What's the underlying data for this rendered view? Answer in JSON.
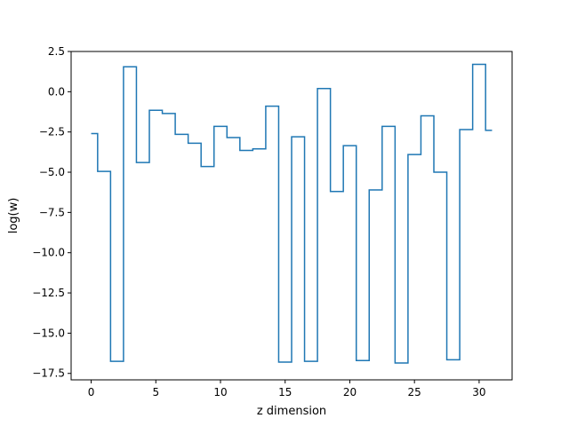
{
  "chart_data": {
    "type": "line",
    "drawstyle": "steps-mid",
    "title": "",
    "xlabel": "z dimension",
    "ylabel": "log(w)",
    "xlim": [
      -1.55,
      32.55
    ],
    "ylim": [
      -17.9,
      2.5
    ],
    "xticks": [
      0,
      5,
      10,
      15,
      20,
      25,
      30
    ],
    "yticks": [
      2.5,
      0.0,
      -2.5,
      -5.0,
      -7.5,
      -10.0,
      -12.5,
      -15.0,
      -17.5
    ],
    "ytick_labels": [
      "2.5",
      "0.0",
      "−2.5",
      "−5.0",
      "−7.5",
      "−10.0",
      "−12.5",
      "−15.0",
      "−17.5"
    ],
    "grid": false,
    "line_color": "#1f77b4",
    "series": [
      {
        "x": [
          0,
          1,
          2,
          3,
          4,
          5,
          6,
          7,
          8,
          9,
          10,
          11,
          12,
          13,
          14,
          15,
          16,
          17,
          18,
          19,
          20,
          21,
          22,
          23,
          24,
          25,
          26,
          27,
          28,
          29,
          30,
          31
        ],
        "values": [
          -2.6,
          -4.95,
          -16.75,
          1.55,
          -4.4,
          -1.15,
          -1.35,
          -2.65,
          -3.2,
          -4.65,
          -2.15,
          -2.85,
          -3.65,
          -3.55,
          -0.9,
          -16.8,
          -2.8,
          -16.75,
          0.2,
          -6.2,
          -3.35,
          -16.7,
          -6.1,
          -2.15,
          -16.85,
          -3.9,
          -1.5,
          -5.0,
          -16.65,
          -2.35,
          1.7,
          -2.4
        ]
      }
    ]
  }
}
